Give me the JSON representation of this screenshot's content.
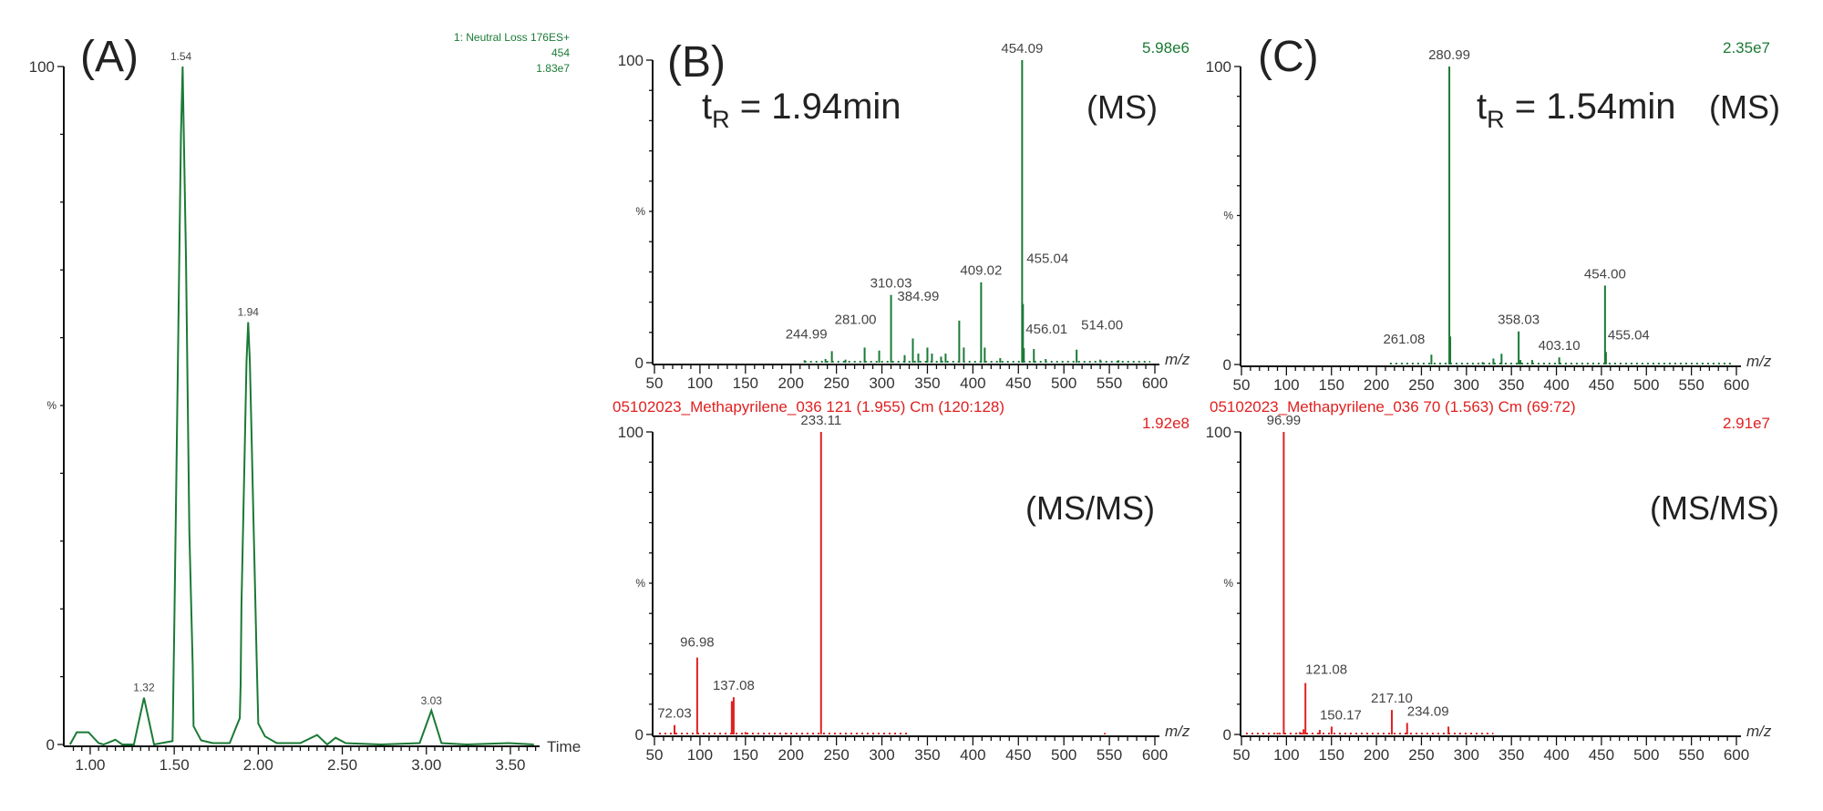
{
  "chart_data": [
    {
      "id": "A",
      "type": "line",
      "panel_label": "(A)",
      "header_lines": [
        "1: Neutral Loss 176ES+",
        "454",
        "1.83e7"
      ],
      "xlabel": "Time",
      "ylabel": "%",
      "xlim": [
        0.843,
        3.663
      ],
      "ylim": [
        0,
        100
      ],
      "xticks": [
        "1.00",
        "1.50",
        "2.00",
        "2.50",
        "3.00",
        "3.50"
      ],
      "yticks": [
        "0",
        "100"
      ],
      "color": "#1a7a35",
      "series": [
        {
          "x": [
            0.88,
            0.92,
            0.99,
            1.05,
            1.08,
            1.15,
            1.19,
            1.26,
            1.32,
            1.38,
            1.49,
            1.5,
            1.51,
            1.52,
            1.53,
            1.54,
            1.55,
            1.556,
            1.57,
            1.58,
            1.59,
            1.61,
            1.615,
            1.66,
            1.73,
            1.83,
            1.89,
            1.895,
            1.9,
            1.91,
            1.92,
            1.93,
            1.94,
            1.95,
            1.96,
            1.97,
            1.98,
            1.99,
            2.0,
            2.04,
            2.11,
            2.25,
            2.35,
            2.41,
            2.46,
            2.52,
            2.73,
            2.96,
            3.03,
            3.09,
            3.24,
            3.49,
            3.64
          ],
          "y": [
            0,
            1.8,
            1.8,
            0.2,
            0,
            0.7,
            0,
            0,
            6.9,
            0,
            0.5,
            16.8,
            34.7,
            53,
            71.6,
            89.9,
            100,
            91.4,
            71.6,
            51.4,
            31.3,
            11.5,
            2.7,
            0.6,
            0.2,
            0.2,
            3.9,
            8.8,
            20.6,
            32.4,
            44.2,
            56.4,
            62.3,
            56.4,
            45.7,
            34.7,
            24,
            13,
            3.1,
            1.2,
            0.2,
            0.2,
            1.4,
            0,
            1,
            0.2,
            0,
            0.2,
            5,
            0.2,
            0,
            0.2,
            0
          ]
        }
      ],
      "peak_labels": [
        {
          "x": 1.32,
          "y": 6.9,
          "label": "1.32"
        },
        {
          "x": 1.54,
          "y": 100,
          "label": "1.54"
        },
        {
          "x": 1.94,
          "y": 62.3,
          "label": "1.94"
        },
        {
          "x": 3.03,
          "y": 5,
          "label": "3.03"
        }
      ]
    },
    {
      "id": "B-MS",
      "type": "bar",
      "panel_label": "(B)",
      "annotation": {
        "t": "t",
        "sub": "R",
        "rest": " = 1.94min"
      },
      "mode": "(MS)",
      "intensity": "5.98e6",
      "xlabel": "m/z",
      "ylabel": "%",
      "xlim": [
        50,
        600
      ],
      "ylim": [
        0,
        100
      ],
      "xticks": [
        "50",
        "100",
        "150",
        "200",
        "250",
        "300",
        "350",
        "400",
        "450",
        "500",
        "550",
        "600"
      ],
      "yticks": [
        "0",
        "100"
      ],
      "color": "#1a7a35",
      "labeled_peaks": [
        {
          "mz": 244.99,
          "y": 3.8,
          "label": "244.99"
        },
        {
          "mz": 281.0,
          "y": 5,
          "label": "281.00"
        },
        {
          "mz": 310.03,
          "y": 22.4,
          "label": "310.03"
        },
        {
          "mz": 384.99,
          "y": 13.9,
          "label": "384.99"
        },
        {
          "mz": 409.02,
          "y": 26.6,
          "label": "409.02"
        },
        {
          "mz": 454.09,
          "y": 100,
          "label": "454.09"
        },
        {
          "mz": 455.04,
          "y": 19.4,
          "label": "455.04"
        },
        {
          "mz": 456.01,
          "y": 4.8,
          "label": "456.01"
        },
        {
          "mz": 514.0,
          "y": 4.3,
          "label": "514.00"
        }
      ],
      "minor_peaks": [
        {
          "mz": 215,
          "y": 0.8
        },
        {
          "mz": 238,
          "y": 1.2
        },
        {
          "mz": 260,
          "y": 1.0
        },
        {
          "mz": 297,
          "y": 4
        },
        {
          "mz": 325,
          "y": 2.5
        },
        {
          "mz": 334,
          "y": 8
        },
        {
          "mz": 340,
          "y": 3
        },
        {
          "mz": 350,
          "y": 5
        },
        {
          "mz": 355,
          "y": 3
        },
        {
          "mz": 365,
          "y": 2
        },
        {
          "mz": 370,
          "y": 3
        },
        {
          "mz": 390,
          "y": 5
        },
        {
          "mz": 413,
          "y": 5
        },
        {
          "mz": 430,
          "y": 1.5
        },
        {
          "mz": 467,
          "y": 4.5
        },
        {
          "mz": 480,
          "y": 1.2
        },
        {
          "mz": 540,
          "y": 1
        },
        {
          "mz": 560,
          "y": 0.8
        }
      ]
    },
    {
      "id": "B-MSMS",
      "type": "bar",
      "title": "05102023_Methapyrilene_036 121 (1.955) Cm (120:128)",
      "mode": "(MS/MS)",
      "intensity": "1.92e8",
      "xlabel": "m/z",
      "ylabel": "%",
      "xlim": [
        50,
        600
      ],
      "ylim": [
        0,
        100
      ],
      "xticks": [
        "50",
        "100",
        "150",
        "200",
        "250",
        "300",
        "350",
        "400",
        "450",
        "500",
        "550",
        "600"
      ],
      "yticks": [
        "0",
        "100"
      ],
      "color": "#e02020",
      "labeled_peaks": [
        {
          "mz": 72.03,
          "y": 3.1,
          "label": "72.03"
        },
        {
          "mz": 96.98,
          "y": 25.4,
          "label": "96.98"
        },
        {
          "mz": 137.08,
          "y": 12.3,
          "label": "137.08"
        },
        {
          "mz": 233.11,
          "y": 100,
          "label": "233.11"
        }
      ],
      "minor_peaks": [
        {
          "mz": 135,
          "y": 11
        },
        {
          "mz": 136,
          "y": 11
        },
        {
          "mz": 150,
          "y": 0.8
        },
        {
          "mz": 195,
          "y": 0.5
        },
        {
          "mz": 545,
          "y": 0.5
        }
      ]
    },
    {
      "id": "C-MS",
      "type": "bar",
      "panel_label": "(C)",
      "annotation": {
        "t": "t",
        "sub": "R",
        "rest": " = 1.54min"
      },
      "mode": "(MS)",
      "intensity": "2.35e7",
      "xlabel": "m/z",
      "ylabel": "%",
      "xlim": [
        50,
        600
      ],
      "ylim": [
        0,
        100
      ],
      "xticks": [
        "50",
        "100",
        "150",
        "200",
        "250",
        "300",
        "350",
        "400",
        "450",
        "500",
        "550",
        "600"
      ],
      "yticks": [
        "0",
        "100"
      ],
      "color": "#1a7a35",
      "labeled_peaks": [
        {
          "mz": 261.08,
          "y": 3.3,
          "label": "261.08"
        },
        {
          "mz": 280.99,
          "y": 100,
          "label": "280.99"
        },
        {
          "mz": 358.03,
          "y": 11.1,
          "label": "358.03"
        },
        {
          "mz": 403.1,
          "y": 2.4,
          "label": "403.10"
        },
        {
          "mz": 454.0,
          "y": 26.5,
          "label": "454.00"
        },
        {
          "mz": 455.04,
          "y": 4.2,
          "label": "455.04"
        }
      ],
      "minor_peaks": [
        {
          "mz": 282,
          "y": 9.4
        },
        {
          "mz": 330,
          "y": 2
        },
        {
          "mz": 339,
          "y": 3.6
        },
        {
          "mz": 373,
          "y": 1.5
        },
        {
          "mz": 318,
          "y": 0.8
        },
        {
          "mz": 360,
          "y": 1.5
        }
      ]
    },
    {
      "id": "C-MSMS",
      "type": "bar",
      "title": "05102023_Methapyrilene_036 70 (1.563) Cm (69:72)",
      "mode": "(MS/MS)",
      "intensity": "2.91e7",
      "xlabel": "m/z",
      "ylabel": "%",
      "xlim": [
        50,
        600
      ],
      "ylim": [
        0,
        100
      ],
      "xticks": [
        "50",
        "100",
        "150",
        "200",
        "250",
        "300",
        "350",
        "400",
        "450",
        "500",
        "550",
        "600"
      ],
      "yticks": [
        "0",
        "100"
      ],
      "color": "#e02020",
      "labeled_peaks": [
        {
          "mz": 96.99,
          "y": 100,
          "label": "96.99"
        },
        {
          "mz": 121.08,
          "y": 17,
          "label": "121.08"
        },
        {
          "mz": 150.17,
          "y": 2.6,
          "label": "150.17"
        },
        {
          "mz": 217.1,
          "y": 8.1,
          "label": "217.10"
        },
        {
          "mz": 234.09,
          "y": 3.8,
          "label": "234.09"
        }
      ],
      "minor_peaks": [
        {
          "mz": 119,
          "y": 1.7
        },
        {
          "mz": 137,
          "y": 1.5
        },
        {
          "mz": 280,
          "y": 2.6
        },
        {
          "mz": 115,
          "y": 0.8
        },
        {
          "mz": 90,
          "y": 0.6
        }
      ]
    }
  ]
}
